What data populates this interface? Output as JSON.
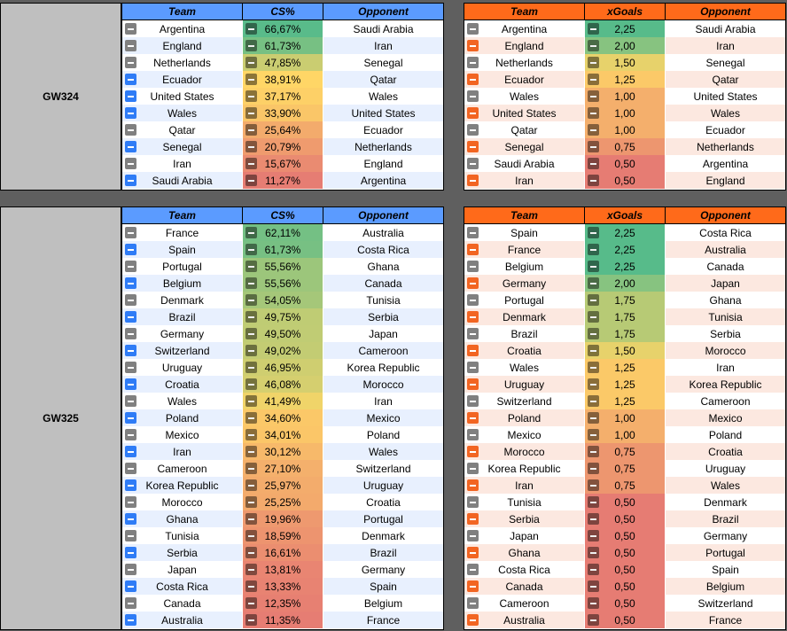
{
  "colors": {
    "blue_header": "#5b9bff",
    "orange_header": "#ff6a1a",
    "label_bg": "#bfbfbf"
  },
  "headers_left": [
    "Team",
    "CS%",
    "Opponent"
  ],
  "headers_right": [
    "Team",
    "xGoals",
    "Opponent"
  ],
  "gameweeks": [
    {
      "label": "GW324",
      "cs_rows": [
        {
          "team": "Argentina",
          "flag": "grey",
          "value": "66,67%",
          "pct": 66.67,
          "opp": "Saudi Arabia"
        },
        {
          "team": "England",
          "flag": "grey",
          "value": "61,73%",
          "pct": 61.73,
          "opp": "Iran"
        },
        {
          "team": "Netherlands",
          "flag": "grey",
          "value": "47,85%",
          "pct": 47.85,
          "opp": "Senegal"
        },
        {
          "team": "Ecuador",
          "flag": "blue",
          "value": "38,91%",
          "pct": 38.91,
          "opp": "Qatar"
        },
        {
          "team": "United States",
          "flag": "blue",
          "value": "37,17%",
          "pct": 37.17,
          "opp": "Wales"
        },
        {
          "team": "Wales",
          "flag": "blue",
          "value": "33,90%",
          "pct": 33.9,
          "opp": "United States"
        },
        {
          "team": "Qatar",
          "flag": "grey",
          "value": "25,64%",
          "pct": 25.64,
          "opp": "Ecuador"
        },
        {
          "team": "Senegal",
          "flag": "blue",
          "value": "20,79%",
          "pct": 20.79,
          "opp": "Netherlands"
        },
        {
          "team": "Iran",
          "flag": "grey",
          "value": "15,67%",
          "pct": 15.67,
          "opp": "England"
        },
        {
          "team": "Saudi Arabia",
          "flag": "blue",
          "value": "11,27%",
          "pct": 11.27,
          "opp": "Argentina"
        }
      ],
      "xg_rows": [
        {
          "team": "Argentina",
          "flag": "grey",
          "value": "2,25",
          "num": 2.25,
          "opp": "Saudi Arabia"
        },
        {
          "team": "England",
          "flag": "orange",
          "value": "2,00",
          "num": 2.0,
          "opp": "Iran"
        },
        {
          "team": "Netherlands",
          "flag": "grey",
          "value": "1,50",
          "num": 1.5,
          "opp": "Senegal"
        },
        {
          "team": "Ecuador",
          "flag": "orange",
          "value": "1,25",
          "num": 1.25,
          "opp": "Qatar"
        },
        {
          "team": "Wales",
          "flag": "grey",
          "value": "1,00",
          "num": 1.0,
          "opp": "United States"
        },
        {
          "team": "United States",
          "flag": "orange",
          "value": "1,00",
          "num": 1.0,
          "opp": "Wales"
        },
        {
          "team": "Qatar",
          "flag": "grey",
          "value": "1,00",
          "num": 1.0,
          "opp": "Ecuador"
        },
        {
          "team": "Senegal",
          "flag": "orange",
          "value": "0,75",
          "num": 0.75,
          "opp": "Netherlands"
        },
        {
          "team": "Saudi Arabia",
          "flag": "grey",
          "value": "0,50",
          "num": 0.5,
          "opp": "Argentina"
        },
        {
          "team": "Iran",
          "flag": "orange",
          "value": "0,50",
          "num": 0.5,
          "opp": "England"
        }
      ]
    },
    {
      "label": "GW325",
      "cs_rows": [
        {
          "team": "France",
          "flag": "grey",
          "value": "62,11%",
          "pct": 62.11,
          "opp": "Australia"
        },
        {
          "team": "Spain",
          "flag": "blue",
          "value": "61,73%",
          "pct": 61.73,
          "opp": "Costa Rica"
        },
        {
          "team": "Portugal",
          "flag": "grey",
          "value": "55,56%",
          "pct": 55.56,
          "opp": "Ghana"
        },
        {
          "team": "Belgium",
          "flag": "blue",
          "value": "55,56%",
          "pct": 55.56,
          "opp": "Canada"
        },
        {
          "team": "Denmark",
          "flag": "grey",
          "value": "54,05%",
          "pct": 54.05,
          "opp": "Tunisia"
        },
        {
          "team": "Brazil",
          "flag": "blue",
          "value": "49,75%",
          "pct": 49.75,
          "opp": "Serbia"
        },
        {
          "team": "Germany",
          "flag": "grey",
          "value": "49,50%",
          "pct": 49.5,
          "opp": "Japan"
        },
        {
          "team": "Switzerland",
          "flag": "blue",
          "value": "49,02%",
          "pct": 49.02,
          "opp": "Cameroon"
        },
        {
          "team": "Uruguay",
          "flag": "grey",
          "value": "46,95%",
          "pct": 46.95,
          "opp": "Korea Republic"
        },
        {
          "team": "Croatia",
          "flag": "blue",
          "value": "46,08%",
          "pct": 46.08,
          "opp": "Morocco"
        },
        {
          "team": "Wales",
          "flag": "grey",
          "value": "41,49%",
          "pct": 41.49,
          "opp": "Iran"
        },
        {
          "team": "Poland",
          "flag": "blue",
          "value": "34,60%",
          "pct": 34.6,
          "opp": "Mexico"
        },
        {
          "team": "Mexico",
          "flag": "grey",
          "value": "34,01%",
          "pct": 34.01,
          "opp": "Poland"
        },
        {
          "team": "Iran",
          "flag": "blue",
          "value": "30,12%",
          "pct": 30.12,
          "opp": "Wales"
        },
        {
          "team": "Cameroon",
          "flag": "grey",
          "value": "27,10%",
          "pct": 27.1,
          "opp": "Switzerland"
        },
        {
          "team": "Korea Republic",
          "flag": "blue",
          "value": "25,97%",
          "pct": 25.97,
          "opp": "Uruguay"
        },
        {
          "team": "Morocco",
          "flag": "grey",
          "value": "25,25%",
          "pct": 25.25,
          "opp": "Croatia"
        },
        {
          "team": "Ghana",
          "flag": "blue",
          "value": "19,96%",
          "pct": 19.96,
          "opp": "Portugal"
        },
        {
          "team": "Tunisia",
          "flag": "grey",
          "value": "18,59%",
          "pct": 18.59,
          "opp": "Denmark"
        },
        {
          "team": "Serbia",
          "flag": "blue",
          "value": "16,61%",
          "pct": 16.61,
          "opp": "Brazil"
        },
        {
          "team": "Japan",
          "flag": "grey",
          "value": "13,81%",
          "pct": 13.81,
          "opp": "Germany"
        },
        {
          "team": "Costa Rica",
          "flag": "blue",
          "value": "13,33%",
          "pct": 13.33,
          "opp": "Spain"
        },
        {
          "team": "Canada",
          "flag": "grey",
          "value": "12,35%",
          "pct": 12.35,
          "opp": "Belgium"
        },
        {
          "team": "Australia",
          "flag": "blue",
          "value": "11,35%",
          "pct": 11.35,
          "opp": "France"
        }
      ],
      "xg_rows": [
        {
          "team": "Spain",
          "flag": "grey",
          "value": "2,25",
          "num": 2.25,
          "opp": "Costa Rica"
        },
        {
          "team": "France",
          "flag": "orange",
          "value": "2,25",
          "num": 2.25,
          "opp": "Australia"
        },
        {
          "team": "Belgium",
          "flag": "grey",
          "value": "2,25",
          "num": 2.25,
          "opp": "Canada"
        },
        {
          "team": "Germany",
          "flag": "orange",
          "value": "2,00",
          "num": 2.0,
          "opp": "Japan"
        },
        {
          "team": "Portugal",
          "flag": "grey",
          "value": "1,75",
          "num": 1.75,
          "opp": "Ghana"
        },
        {
          "team": "Denmark",
          "flag": "orange",
          "value": "1,75",
          "num": 1.75,
          "opp": "Tunisia"
        },
        {
          "team": "Brazil",
          "flag": "grey",
          "value": "1,75",
          "num": 1.75,
          "opp": "Serbia"
        },
        {
          "team": "Croatia",
          "flag": "orange",
          "value": "1,50",
          "num": 1.5,
          "opp": "Morocco"
        },
        {
          "team": "Wales",
          "flag": "grey",
          "value": "1,25",
          "num": 1.25,
          "opp": "Iran"
        },
        {
          "team": "Uruguay",
          "flag": "orange",
          "value": "1,25",
          "num": 1.25,
          "opp": "Korea Republic"
        },
        {
          "team": "Switzerland",
          "flag": "grey",
          "value": "1,25",
          "num": 1.25,
          "opp": "Cameroon"
        },
        {
          "team": "Poland",
          "flag": "orange",
          "value": "1,00",
          "num": 1.0,
          "opp": "Mexico"
        },
        {
          "team": "Mexico",
          "flag": "grey",
          "value": "1,00",
          "num": 1.0,
          "opp": "Poland"
        },
        {
          "team": "Morocco",
          "flag": "orange",
          "value": "0,75",
          "num": 0.75,
          "opp": "Croatia"
        },
        {
          "team": "Korea Republic",
          "flag": "grey",
          "value": "0,75",
          "num": 0.75,
          "opp": "Uruguay"
        },
        {
          "team": "Iran",
          "flag": "orange",
          "value": "0,75",
          "num": 0.75,
          "opp": "Wales"
        },
        {
          "team": "Tunisia",
          "flag": "grey",
          "value": "0,50",
          "num": 0.5,
          "opp": "Denmark"
        },
        {
          "team": "Serbia",
          "flag": "orange",
          "value": "0,50",
          "num": 0.5,
          "opp": "Brazil"
        },
        {
          "team": "Japan",
          "flag": "grey",
          "value": "0,50",
          "num": 0.5,
          "opp": "Germany"
        },
        {
          "team": "Ghana",
          "flag": "orange",
          "value": "0,50",
          "num": 0.5,
          "opp": "Portugal"
        },
        {
          "team": "Costa Rica",
          "flag": "grey",
          "value": "0,50",
          "num": 0.5,
          "opp": "Spain"
        },
        {
          "team": "Canada",
          "flag": "orange",
          "value": "0,50",
          "num": 0.5,
          "opp": "Belgium"
        },
        {
          "team": "Cameroon",
          "flag": "grey",
          "value": "0,50",
          "num": 0.5,
          "opp": "Switzerland"
        },
        {
          "team": "Australia",
          "flag": "orange",
          "value": "0,50",
          "num": 0.5,
          "opp": "France"
        }
      ]
    }
  ]
}
